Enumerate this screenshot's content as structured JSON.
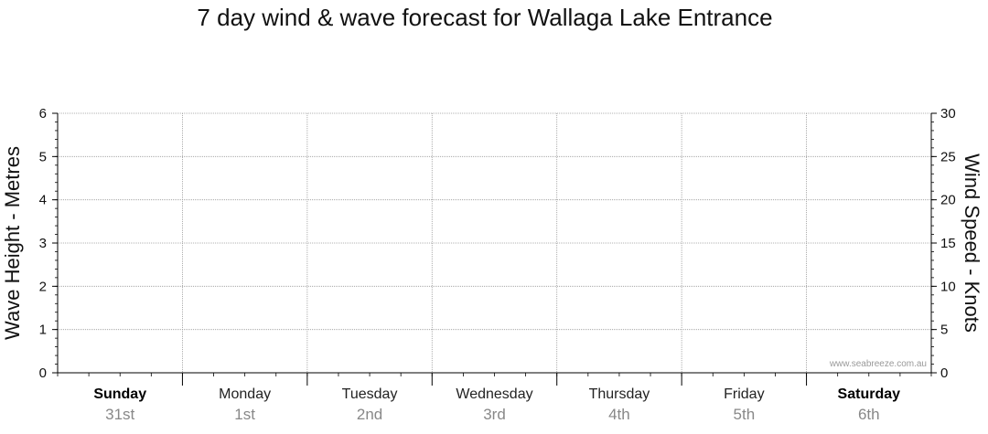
{
  "chart_data": {
    "type": "line",
    "title": "7 day wind & wave forecast for Wallaga Lake Entrance",
    "ylabel_left": "Wave Height - Metres",
    "ylabel_right": "Wind Speed - Knots",
    "y_left": {
      "min": 0,
      "max": 6,
      "ticks": [
        0,
        1,
        2,
        3,
        4,
        5,
        6
      ]
    },
    "y_right": {
      "min": 0,
      "max": 30,
      "ticks": [
        0,
        5,
        10,
        15,
        20,
        25,
        30
      ]
    },
    "days": [
      {
        "name": "Sunday",
        "date": "31st",
        "bold": true
      },
      {
        "name": "Monday",
        "date": "1st",
        "bold": false
      },
      {
        "name": "Tuesday",
        "date": "2nd",
        "bold": false
      },
      {
        "name": "Wednesday",
        "date": "3rd",
        "bold": false
      },
      {
        "name": "Thursday",
        "date": "4th",
        "bold": false
      },
      {
        "name": "Friday",
        "date": "5th",
        "bold": false
      },
      {
        "name": "Saturday",
        "date": "6th",
        "bold": true
      }
    ],
    "series": [],
    "grid": true,
    "watermark": "www.seabreeze.com.au"
  }
}
